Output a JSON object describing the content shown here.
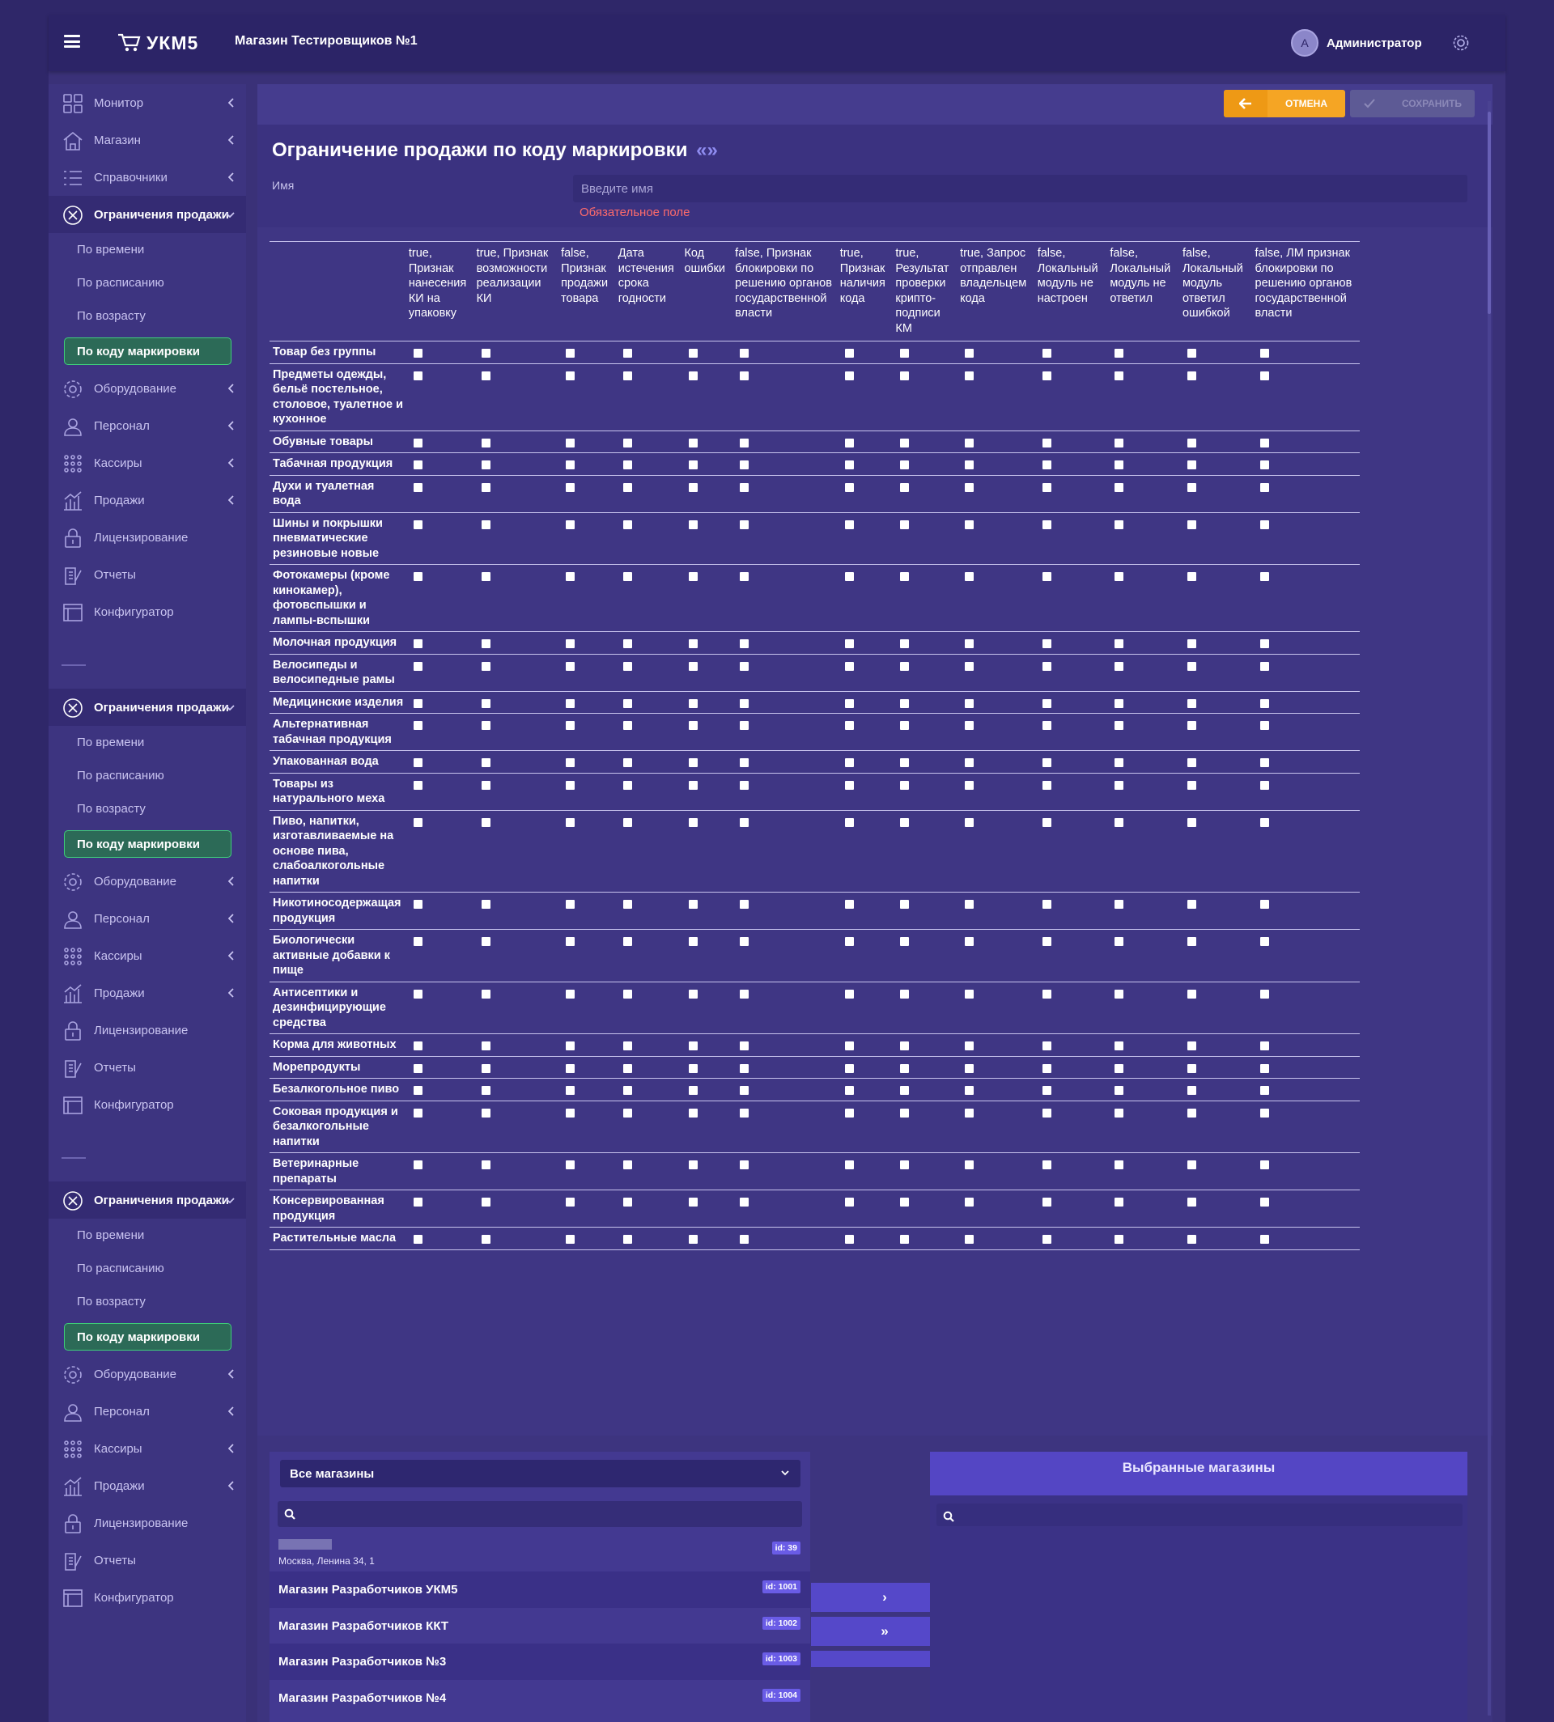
{
  "header": {
    "brand": "УКМ5",
    "store": "Магазин Тестировщиков №1",
    "avatar_letter": "А",
    "user": "Администратор"
  },
  "sidebar": {
    "groups": [
      {
        "items": [
          "Монитор",
          "Магазин",
          "Справочники"
        ],
        "active": "Ограничения продажи",
        "subs": [
          "По времени",
          "По расписанию",
          "По возрасту",
          "По коду маркировки"
        ],
        "after": [
          "Оборудование",
          "Персонал",
          "Кассиры",
          "Продажи",
          "Лицензирование",
          "Отчеты",
          "Конфигуратор"
        ]
      },
      {
        "active": "Ограничения продажи",
        "subs": [
          "По времени",
          "По расписанию",
          "По возрасту",
          "По коду маркировки"
        ],
        "after": [
          "Оборудование",
          "Персонал",
          "Кассиры",
          "Продажи",
          "Лицензирование",
          "Отчеты",
          "Конфигуратор"
        ]
      },
      {
        "active": "Ограничения продажи",
        "subs": [
          "По времени",
          "По расписанию",
          "По возрасту",
          "По коду маркировки"
        ],
        "after": [
          "Оборудование",
          "Персонал",
          "Кассиры",
          "Продажи",
          "Лицензирование",
          "Отчеты",
          "Конфигуратор"
        ]
      }
    ]
  },
  "toolbar": {
    "cancel": "ОТМЕНА",
    "save": "СОХРАНИТЬ"
  },
  "page": {
    "title": "Ограничение продажи по коду маркировки",
    "quote": "«»",
    "name_label": "Имя",
    "name_placeholder": "Введите имя",
    "required": "Обязательное поле"
  },
  "columns": [
    "true, Признак нанесения КИ на упаковку",
    "true, Признак возможности реализации КИ",
    "false, Признак продажи товара",
    "Дата истечения срока годности",
    "Код ошибки",
    "false, Признак блокировки по решению органов государственной власти",
    "true, Признак наличия кода",
    "true, Результат проверки крипто-подписи КМ",
    "true, Запрос отправлен владельцем кода",
    "false, Локальный модуль не настроен",
    "false, Локальный модуль не ответил",
    "false, Локальный модуль ответил ошибкой",
    "false, ЛМ признак блокировки по решению органов государственной власти"
  ],
  "rows": [
    "Товар без группы",
    "Предметы одежды, бельё постельное, столовое, туалетное и кухонное",
    "Обувные товары",
    "Табачная продукция",
    "Духи и туалетная вода",
    "Шины и покрышки пневматические резиновые новые",
    "Фотокамеры (кроме кинокамер), фотовспышки и лампы-вспышки",
    "Молочная продукция",
    "Велосипеды и велосипедные рамы",
    "Медицинские изделия",
    "Альтернативная табачная продукция",
    "Упакованная вода",
    "Товары из натурального меха",
    "Пиво, напитки, изготавливаемые на основе пива, слабоалкогольные напитки",
    "Никотиносодержащая продукция",
    "Биологически активные добавки к пище",
    "Антисептики и дезинфицирующие средства",
    "Корма для животных",
    "Морепродукты",
    "Безалкогольное пиво",
    "Соковая продукция и безалкогольные напитки",
    "Ветеринарные препараты",
    "Консервированная продукция",
    "Растительные масла"
  ],
  "stores": {
    "filter": "Все магазины",
    "selected_title": "Выбранные магазины",
    "list": [
      {
        "name": "",
        "address": "Москва, Ленина 34, 1",
        "id": "id: 39"
      },
      {
        "name": "Магазин Разработчиков УКМ5",
        "id": "id: 1001"
      },
      {
        "name": "Магазин Разработчиков ККТ",
        "id": "id: 1002"
      },
      {
        "name": "Магазин Разработчиков №3",
        "id": "id: 1003"
      },
      {
        "name": "Магазин Разработчиков №4",
        "id": "id: 1004"
      }
    ],
    "move_one": "›",
    "move_all": "»"
  },
  "colors": {
    "bg": "#2f2769",
    "accent": "#f5a524",
    "selected": "#3fcf7a",
    "badge": "#6a5ce6"
  }
}
